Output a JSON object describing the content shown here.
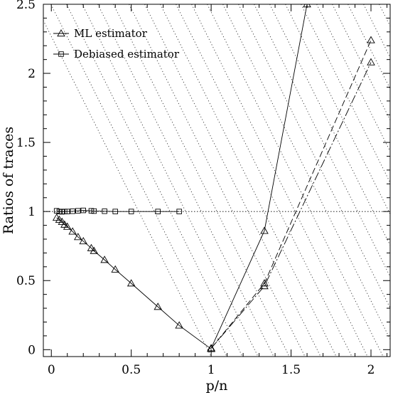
{
  "chart_data": {
    "type": "line",
    "xlabel": "p/n",
    "ylabel": "Ratios of traces",
    "xlim": [
      -0.05,
      2.12
    ],
    "ylim": [
      -0.05,
      2.5
    ],
    "xticks": [
      0,
      0.5,
      1,
      1.5,
      2
    ],
    "xtick_labels": [
      "0",
      "0.5",
      "1",
      "1.5",
      "2"
    ],
    "yticks": [
      0,
      0.5,
      1,
      1.5,
      2,
      2.5
    ],
    "ytick_labels": [
      "0",
      "0.5",
      "1",
      "1.5",
      "2",
      "2.5"
    ],
    "reference_line": {
      "y": 1,
      "style": "dotted"
    },
    "shaded_region": {
      "x_from": 1,
      "x_to": 2.12,
      "pattern": "diagonal-dotted-hatch"
    },
    "grid": false,
    "legend_position": "top-left",
    "legend": [
      {
        "label": "ML estimator",
        "marker": "triangle"
      },
      {
        "label": "Debiased estimator",
        "marker": "square"
      }
    ],
    "series": [
      {
        "name": "ML estimator",
        "marker": "triangle",
        "line": "solid",
        "x": [
          0.033,
          0.05,
          0.067,
          0.083,
          0.1,
          0.133,
          0.167,
          0.2,
          0.25,
          0.267,
          0.333,
          0.4,
          0.5,
          0.667,
          0.8,
          1.0
        ],
        "y": [
          0.955,
          0.94,
          0.925,
          0.905,
          0.89,
          0.855,
          0.815,
          0.785,
          0.735,
          0.715,
          0.65,
          0.58,
          0.48,
          0.31,
          0.175,
          0.005
        ]
      },
      {
        "name": "Debiased estimator",
        "marker": "square",
        "line": "solid",
        "x": [
          0.033,
          0.05,
          0.067,
          0.083,
          0.1,
          0.133,
          0.167,
          0.2,
          0.25,
          0.267,
          0.333,
          0.4,
          0.5,
          0.667,
          0.8
        ],
        "y": [
          1.005,
          1.0,
          0.998,
          1.0,
          1.0,
          1.002,
          1.005,
          1.008,
          1.005,
          1.003,
          1.002,
          1.0,
          1.0,
          1.0,
          1.0
        ]
      },
      {
        "marker": "triangle",
        "line": "solid",
        "x": [
          1.0,
          1.333,
          1.6
        ],
        "y": [
          0.01,
          0.86,
          2.5
        ]
      },
      {
        "marker": "triangle",
        "line": "dashed",
        "x": [
          1.0,
          1.333,
          2.0
        ],
        "y": [
          0.01,
          0.48,
          2.24
        ]
      },
      {
        "marker": "triangle",
        "line": "dashdot",
        "x": [
          1.0,
          1.333,
          2.0
        ],
        "y": [
          0.01,
          0.46,
          2.08
        ]
      }
    ]
  }
}
